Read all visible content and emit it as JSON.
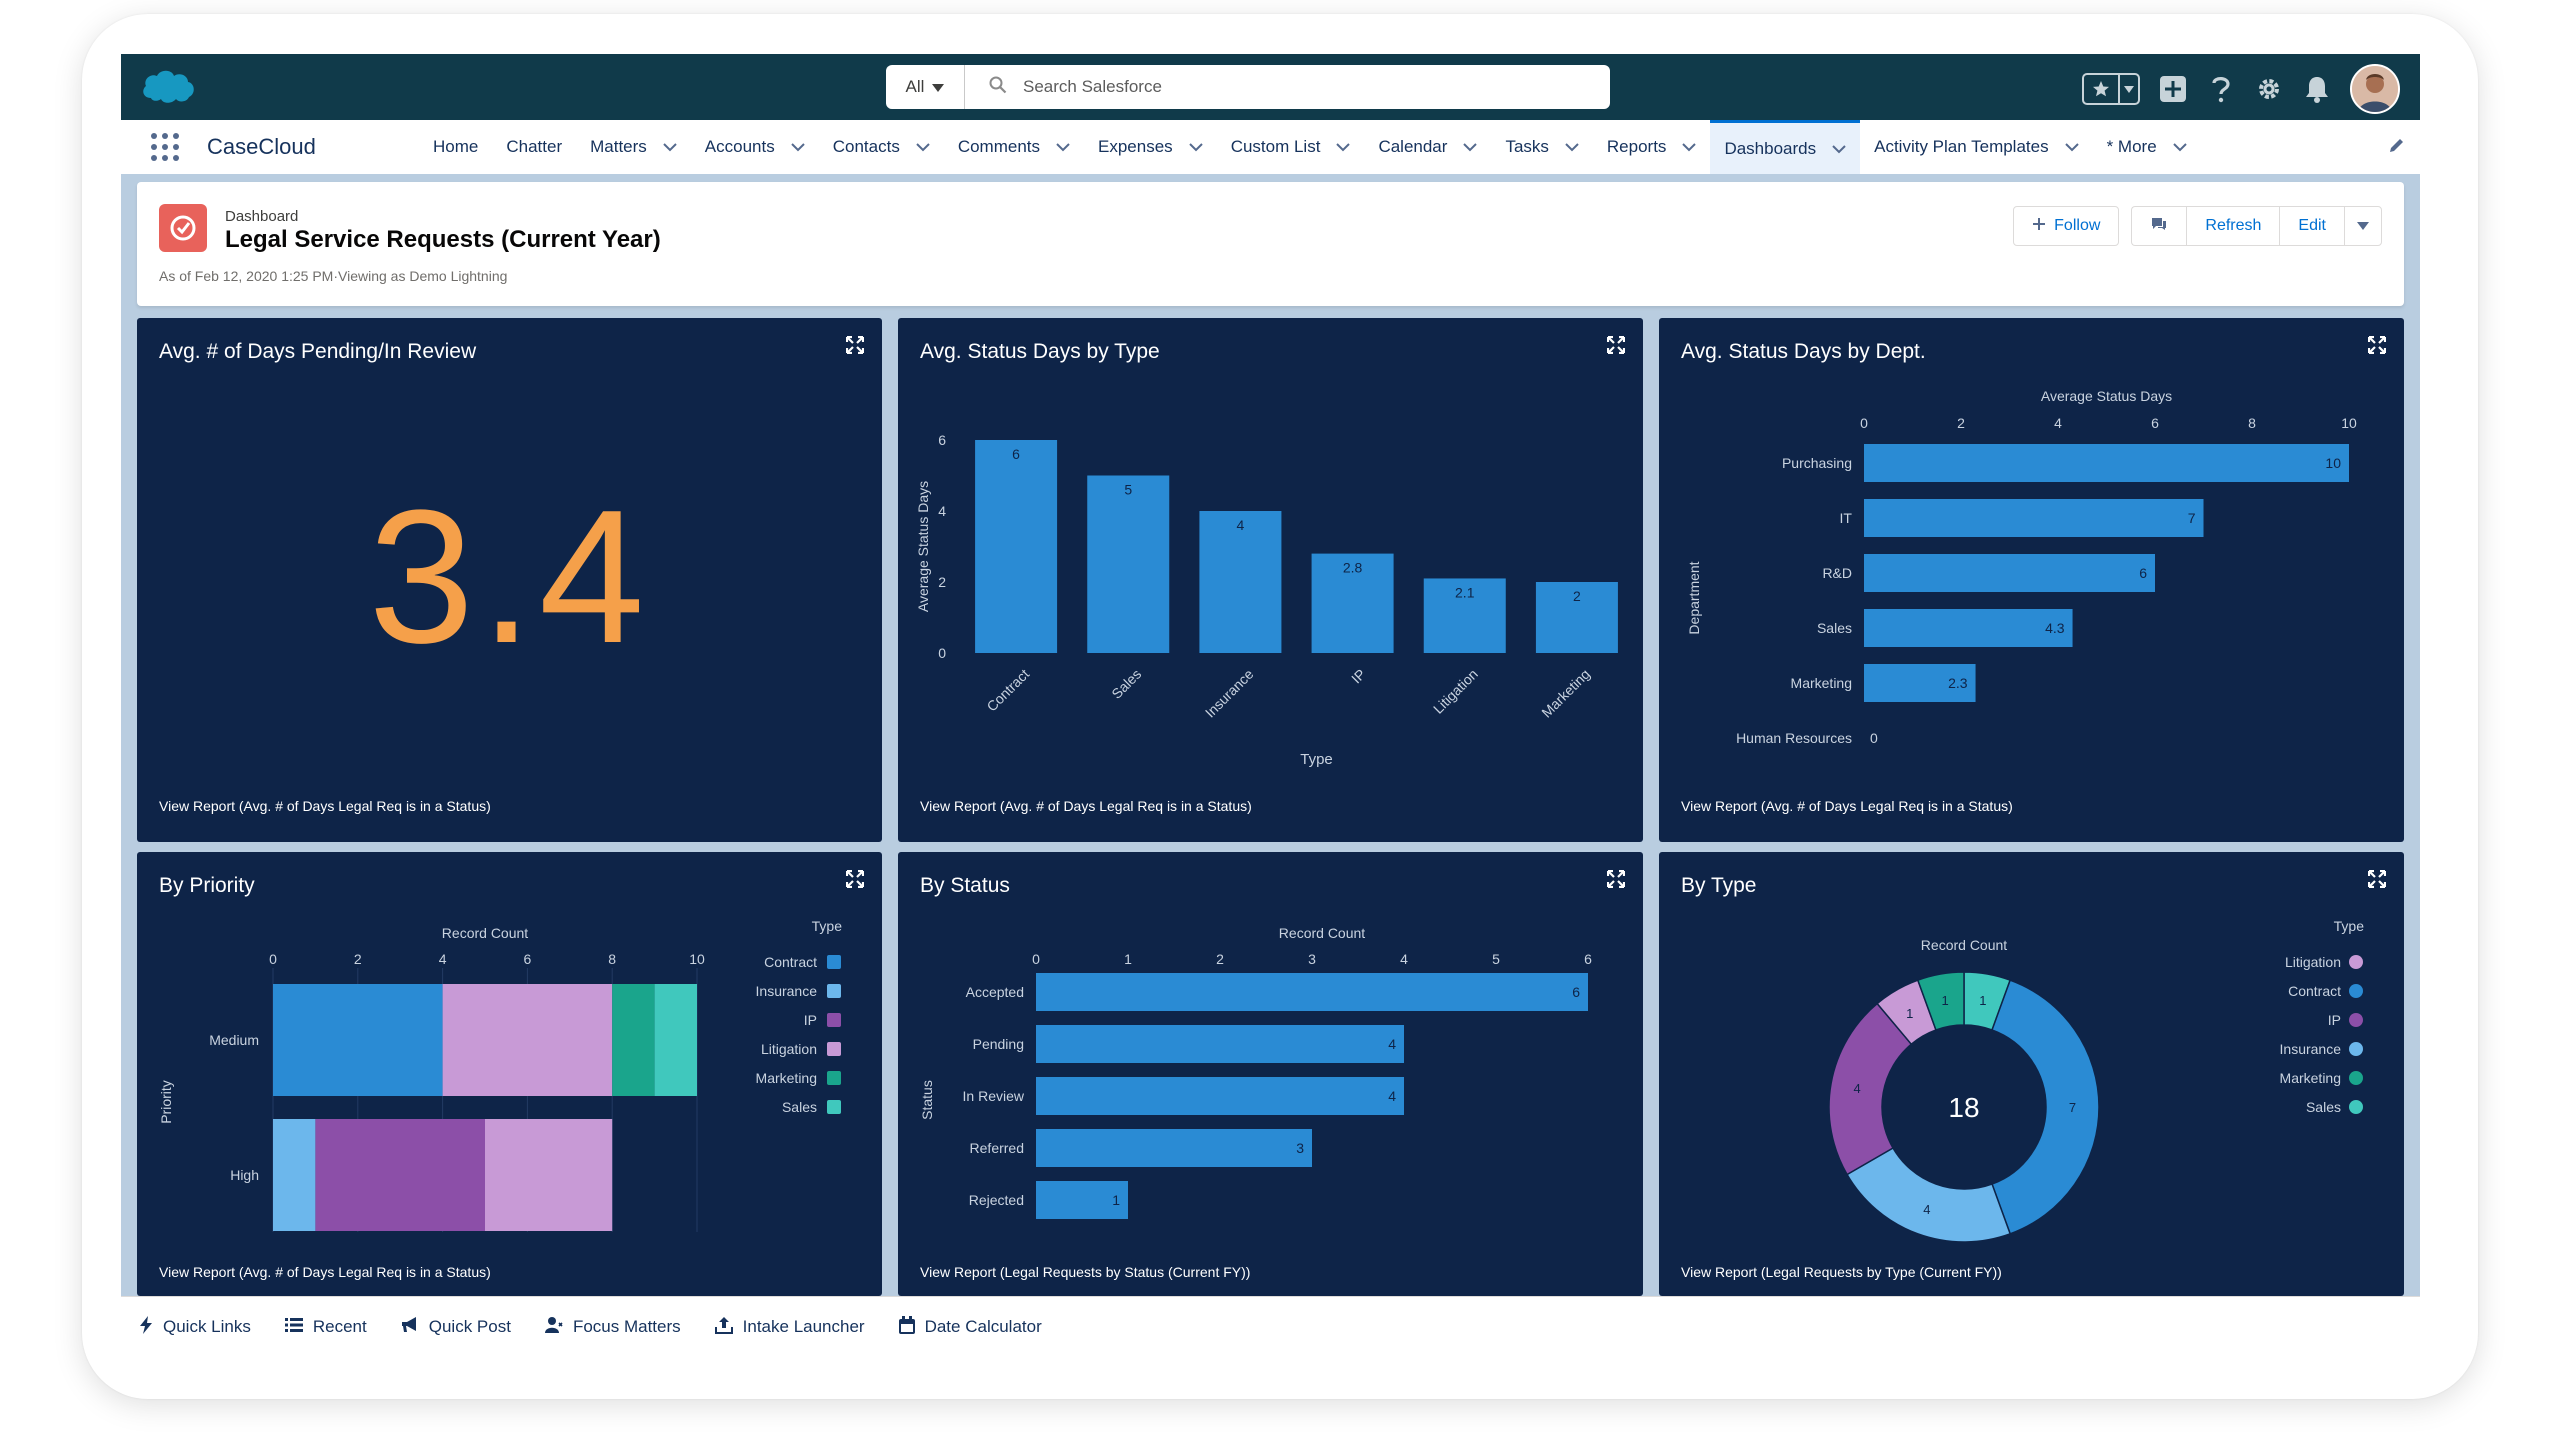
{
  "topbar": {
    "search_scope": "All",
    "search_placeholder": "Search Salesforce"
  },
  "nav": {
    "app_name": "CaseCloud",
    "items": [
      {
        "label": "Home",
        "has_menu": false
      },
      {
        "label": "Chatter",
        "has_menu": false
      },
      {
        "label": "Matters",
        "has_menu": true
      },
      {
        "label": "Accounts",
        "has_menu": true
      },
      {
        "label": "Contacts",
        "has_menu": true
      },
      {
        "label": "Comments",
        "has_menu": true
      },
      {
        "label": "Expenses",
        "has_menu": true
      },
      {
        "label": "Custom List",
        "has_menu": true
      },
      {
        "label": "Calendar",
        "has_menu": true
      },
      {
        "label": "Tasks",
        "has_menu": true
      },
      {
        "label": "Reports",
        "has_menu": true
      },
      {
        "label": "Dashboards",
        "has_menu": true,
        "active": true
      },
      {
        "label": "Activity Plan Templates",
        "has_menu": true
      },
      {
        "label": "* More",
        "has_menu": true
      }
    ]
  },
  "header": {
    "kicker": "Dashboard",
    "title": "Legal Service Requests (Current Year)",
    "subtitle": "As of Feb 12, 2020 1:25 PM·Viewing as Demo Lightning",
    "follow_label": "Follow",
    "refresh_label": "Refresh",
    "edit_label": "Edit"
  },
  "panels": {
    "days_pending": {
      "title": "Avg. # of Days Pending/In Review",
      "value": "3.4",
      "link": "View Report (Avg. # of Days Legal Req is in a Status)"
    },
    "status_days_type": {
      "title": "Avg. Status Days by Type",
      "link": "View Report (Avg. # of Days Legal Req is in a Status)"
    },
    "status_days_dept": {
      "title": "Avg. Status Days by Dept.",
      "link": "View Report (Avg. # of Days Legal Req is in a Status)"
    },
    "by_priority": {
      "title": "By Priority",
      "link": "View Report (Avg. # of Days Legal Req is in a Status)"
    },
    "by_status": {
      "title": "By Status",
      "link": "View Report (Legal Requests by Status (Current FY))"
    },
    "by_type": {
      "title": "By Type",
      "link": "View Report (Legal Requests by Type (Current FY))"
    }
  },
  "utility_bar": {
    "items": [
      "Quick Links",
      "Recent",
      "Quick Post",
      "Focus Matters",
      "Intake Launcher",
      "Date Calculator"
    ]
  },
  "colors": {
    "topbar": "#103a4a",
    "panel_bg": "#0e2448",
    "bar_blue": "#2a8bd4",
    "metric_orange": "#f5a04a",
    "contract": "#2a8bd4",
    "insurance": "#6cb7ec",
    "ip": "#8c4fa8",
    "litigation": "#c89ad6",
    "marketing": "#1aa58c",
    "sales": "#40c8bd"
  },
  "chart_data": [
    {
      "id": "status_days_type",
      "type": "bar",
      "xlabel": "Type",
      "ylabel": "Average Status Days",
      "categories": [
        "Contract",
        "Sales",
        "Insurance",
        "IP",
        "Litigation",
        "Marketing"
      ],
      "values": [
        6,
        5,
        4,
        2.8,
        2.1,
        2
      ],
      "data_labels": [
        "6",
        "5",
        "4",
        "2.8",
        "2.1",
        "2"
      ],
      "ylim": [
        0,
        6
      ],
      "yticks": [
        0,
        2,
        4,
        6
      ]
    },
    {
      "id": "status_days_dept",
      "type": "bar",
      "orientation": "horizontal",
      "title": "Average Status Days",
      "ylabel": "Department",
      "categories": [
        "Purchasing",
        "IT",
        "R&D",
        "Sales",
        "Marketing",
        "Human Resources"
      ],
      "values": [
        10,
        7,
        6,
        4.3,
        2.3,
        0
      ],
      "data_labels": [
        "10",
        "7",
        "6",
        "4.3",
        "2.3",
        "0"
      ],
      "xlim": [
        0,
        10
      ],
      "xticks": [
        0,
        2,
        4,
        6,
        8,
        10
      ]
    },
    {
      "id": "by_priority",
      "type": "bar",
      "orientation": "horizontal",
      "stacked": true,
      "title": "Record Count",
      "ylabel": "Priority",
      "legend_title": "Type",
      "categories": [
        "Medium",
        "High"
      ],
      "series": [
        {
          "name": "Contract",
          "values": [
            4,
            0
          ]
        },
        {
          "name": "Insurance",
          "values": [
            0,
            1
          ]
        },
        {
          "name": "IP",
          "values": [
            0,
            4
          ]
        },
        {
          "name": "Litigation",
          "values": [
            4,
            3
          ]
        },
        {
          "name": "Marketing",
          "values": [
            1,
            0
          ]
        },
        {
          "name": "Sales",
          "values": [
            1,
            0
          ]
        }
      ],
      "xlim": [
        0,
        10
      ],
      "xticks": [
        0,
        2,
        4,
        6,
        8,
        10
      ],
      "legend": "right"
    },
    {
      "id": "by_status",
      "type": "bar",
      "orientation": "horizontal",
      "title": "Record Count",
      "ylabel": "Status",
      "categories": [
        "Accepted",
        "Pending",
        "In Review",
        "Referred",
        "Rejected"
      ],
      "values": [
        6,
        4,
        4,
        3,
        1
      ],
      "data_labels": [
        "6",
        "4",
        "4",
        "3",
        "1"
      ],
      "xlim": [
        0,
        6
      ],
      "xticks": [
        0,
        1,
        2,
        3,
        4,
        5,
        6
      ]
    },
    {
      "id": "by_type",
      "type": "pie",
      "donut": true,
      "title": "Record Count",
      "legend_title": "Type",
      "total": "18",
      "categories": [
        "Litigation",
        "Contract",
        "IP",
        "Insurance",
        "Marketing",
        "Sales"
      ],
      "values": [
        1,
        7,
        4,
        4,
        1,
        1
      ],
      "data_labels": [
        "1",
        "7",
        "4",
        "4",
        "1",
        "1"
      ],
      "legend": "right"
    }
  ]
}
